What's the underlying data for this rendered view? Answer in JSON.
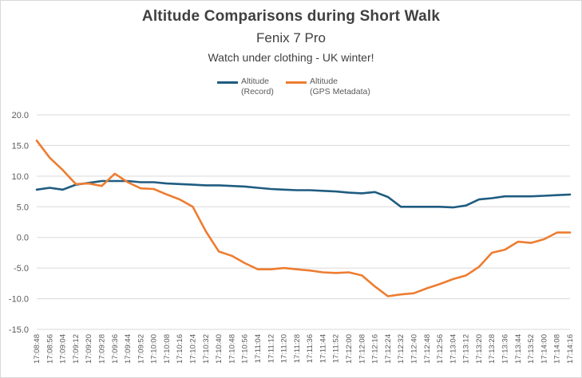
{
  "chart_data": {
    "type": "line",
    "title": "Altitude Comparisons during Short Walk",
    "subtitle": "Fenix 7 Pro",
    "subtitle2": "Watch under clothing - UK winter!",
    "ylim": [
      -15,
      20
    ],
    "yticks": [
      "20.0",
      "15.0",
      "10.0",
      "5.0",
      "0.0",
      "-5.0",
      "-10.0",
      "-15.0"
    ],
    "ytick_values": [
      20,
      15,
      10,
      5,
      0,
      -5,
      -10,
      -15
    ],
    "grid": true,
    "legend_position": "top",
    "xticks": [
      "17:08:48",
      "17:08:56",
      "17:09:04",
      "17:09:12",
      "17:09:20",
      "17:09:28",
      "17:09:36",
      "17:09:44",
      "17:09:52",
      "17:10:00",
      "17:10:08",
      "17:10:16",
      "17:10:24",
      "17:10:32",
      "17:10:40",
      "17:10:48",
      "17:10:56",
      "17:11:04",
      "17:11:12",
      "17:11:20",
      "17:11:28",
      "17:11:36",
      "17:11:44",
      "17:11:52",
      "17:12:00",
      "17:12:08",
      "17:12:16",
      "17:12:24",
      "17:12:32",
      "17:12:40",
      "17:12:48",
      "17:12:56",
      "17:13:04",
      "17:13:12",
      "17:13:20",
      "17:13:28",
      "17:13:36",
      "17:13:44",
      "17:13:52",
      "17:14:00",
      "17:14:08",
      "17:14:16"
    ],
    "series": [
      {
        "name": "Altitude\n(Record)",
        "color": "#1f5c80",
        "values": [
          7.8,
          8.1,
          7.8,
          8.6,
          8.9,
          9.2,
          9.2,
          9.2,
          9.0,
          9.0,
          8.8,
          8.7,
          8.6,
          8.5,
          8.5,
          8.4,
          8.3,
          8.1,
          7.9,
          7.8,
          7.7,
          7.7,
          7.6,
          7.5,
          7.3,
          7.2,
          7.4,
          6.6,
          5.0,
          5.0,
          5.0,
          5.0,
          4.9,
          5.2,
          6.2,
          6.4,
          6.7,
          6.7,
          6.7,
          6.8,
          6.9,
          7.0
        ]
      },
      {
        "name": "Altitude\n(GPS Metadata)",
        "color": "#ed7d31",
        "values": [
          15.8,
          13.0,
          11.0,
          8.7,
          8.8,
          8.4,
          10.4,
          9.0,
          8.0,
          7.9,
          7.0,
          6.2,
          5.0,
          1.0,
          -2.3,
          -3.0,
          -4.2,
          -5.2,
          -5.2,
          -5.0,
          -5.2,
          -5.4,
          -5.7,
          -5.8,
          -5.7,
          -6.2,
          -8.0,
          -9.6,
          -9.3,
          -9.1,
          -8.3,
          -7.6,
          -6.8,
          -6.2,
          -4.8,
          -2.5,
          -2.0,
          -0.7,
          -0.9,
          -0.3,
          0.8,
          0.8
        ]
      }
    ]
  },
  "colors": {
    "grid": "#d9d9d9",
    "text": "#404040",
    "frame": "#d9d9d9"
  }
}
